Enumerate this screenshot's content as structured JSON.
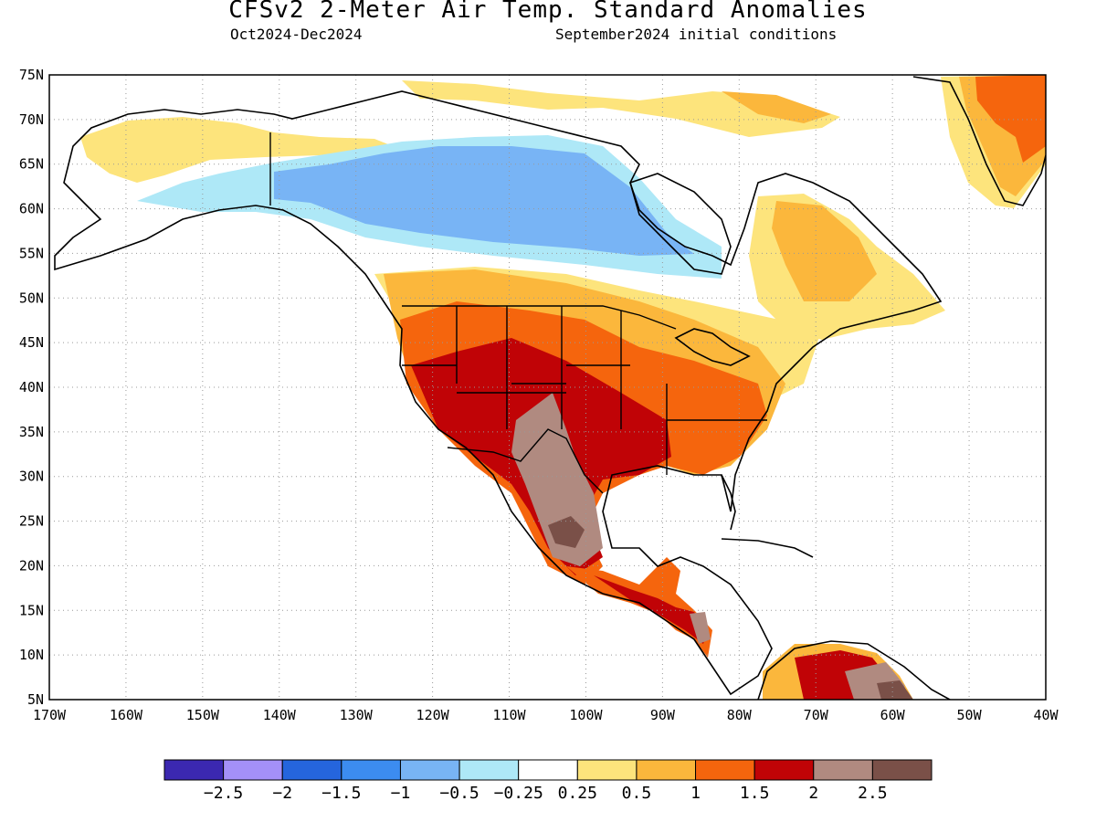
{
  "header": {
    "title": "CFSv2 2-Meter Air Temp. Standard Anomalies",
    "period": "Oct2024-Dec2024",
    "initial_conditions": "September2024 initial conditions"
  },
  "map": {
    "lon_range": [
      -170,
      -40
    ],
    "lat_range": [
      5,
      75
    ],
    "lat_labels": [
      "5N",
      "10N",
      "15N",
      "20N",
      "25N",
      "30N",
      "35N",
      "40N",
      "45N",
      "50N",
      "55N",
      "60N",
      "65N",
      "70N",
      "75N"
    ],
    "lon_labels": [
      "170W",
      "160W",
      "150W",
      "140W",
      "130W",
      "120W",
      "110W",
      "100W",
      "90W",
      "80W",
      "70W",
      "60W",
      "50W",
      "40W"
    ],
    "gridlines": "dotted",
    "coastline_color": "#000000"
  },
  "colorbar": {
    "colors": [
      "#3b28b0",
      "#a490f8",
      "#2565dd",
      "#3c8cf0",
      "#78b4f5",
      "#aee8f7",
      "#ffffff",
      "#fde47c",
      "#fbb73c",
      "#f5650d",
      "#c00306",
      "#b08a80",
      "#7a5048"
    ],
    "labels": [
      "−2.5",
      "−2",
      "−1.5",
      "−1",
      "−0.5",
      "−0.25",
      "0.25",
      "0.5",
      "1",
      "1.5",
      "2",
      "2.5"
    ]
  }
}
